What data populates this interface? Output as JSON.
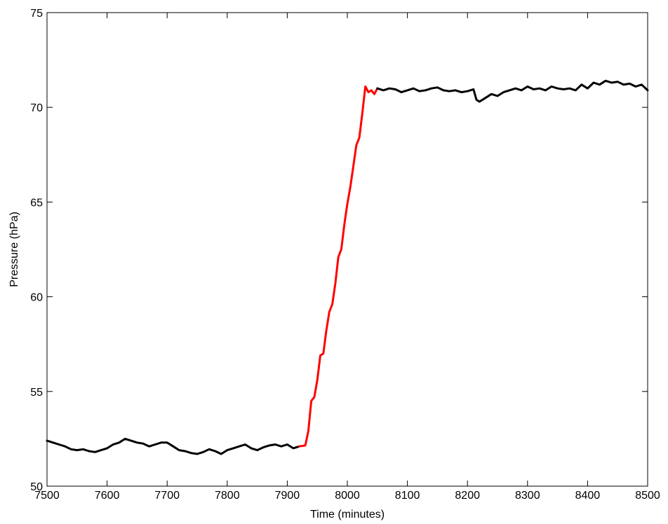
{
  "chart_data": {
    "type": "line",
    "title": "",
    "xlabel": "Time (minutes)",
    "ylabel": "Pressure (hPa)",
    "xlim": [
      7500,
      8500
    ],
    "ylim": [
      50,
      75
    ],
    "xticks": [
      7500,
      7600,
      7700,
      7800,
      7900,
      8000,
      8100,
      8200,
      8300,
      8400,
      8500
    ],
    "yticks": [
      50,
      55,
      60,
      65,
      70,
      75
    ],
    "grid": false,
    "legend": "none",
    "series": [
      {
        "color": "#000000",
        "segment": "before",
        "x": [
          7500,
          7510,
          7520,
          7530,
          7540,
          7550,
          7560,
          7570,
          7580,
          7590,
          7600,
          7610,
          7620,
          7630,
          7640,
          7650,
          7660,
          7670,
          7680,
          7690,
          7700,
          7710,
          7720,
          7730,
          7740,
          7750,
          7760,
          7770,
          7780,
          7790,
          7800,
          7810,
          7820,
          7830,
          7840,
          7850,
          7860,
          7870,
          7880,
          7890,
          7900,
          7910,
          7920
        ],
        "y": [
          52.4,
          52.3,
          52.2,
          52.1,
          51.95,
          51.9,
          51.95,
          51.85,
          51.8,
          51.9,
          52.0,
          52.2,
          52.3,
          52.5,
          52.4,
          52.3,
          52.25,
          52.1,
          52.2,
          52.3,
          52.3,
          52.1,
          51.9,
          51.85,
          51.75,
          51.7,
          51.8,
          51.95,
          51.85,
          51.7,
          51.9,
          52.0,
          52.1,
          52.2,
          52.0,
          51.9,
          52.05,
          52.15,
          52.2,
          52.1,
          52.2,
          52.0,
          52.1
        ]
      },
      {
        "color": "#ff0000",
        "segment": "transition",
        "x": [
          7920,
          7930,
          7935,
          7940,
          7945,
          7950,
          7955,
          7960,
          7965,
          7970,
          7975,
          7980,
          7985,
          7990,
          7995,
          8000,
          8005,
          8010,
          8015,
          8020,
          8025,
          8030,
          8035,
          8040,
          8045,
          8050
        ],
        "y": [
          52.1,
          52.15,
          52.9,
          54.5,
          54.7,
          55.6,
          56.9,
          57.0,
          58.2,
          59.2,
          59.6,
          60.7,
          62.1,
          62.5,
          63.8,
          64.9,
          65.8,
          66.9,
          68.0,
          68.4,
          69.7,
          71.1,
          70.8,
          70.9,
          70.7,
          71.0
        ]
      },
      {
        "color": "#000000",
        "segment": "after",
        "x": [
          8050,
          8060,
          8070,
          8080,
          8090,
          8100,
          8110,
          8120,
          8130,
          8140,
          8150,
          8160,
          8170,
          8180,
          8190,
          8200,
          8210,
          8215,
          8220,
          8230,
          8240,
          8250,
          8260,
          8270,
          8280,
          8290,
          8300,
          8310,
          8320,
          8330,
          8340,
          8350,
          8360,
          8370,
          8380,
          8390,
          8400,
          8410,
          8420,
          8430,
          8440,
          8450,
          8460,
          8470,
          8480,
          8490,
          8500
        ],
        "y": [
          71.0,
          70.9,
          71.0,
          70.95,
          70.8,
          70.9,
          71.0,
          70.85,
          70.9,
          71.0,
          71.05,
          70.9,
          70.85,
          70.9,
          70.8,
          70.85,
          70.95,
          70.4,
          70.3,
          70.5,
          70.7,
          70.6,
          70.8,
          70.9,
          71.0,
          70.9,
          71.1,
          70.95,
          71.0,
          70.9,
          71.1,
          71.0,
          70.95,
          71.0,
          70.9,
          71.2,
          71.0,
          71.3,
          71.2,
          71.4,
          71.3,
          71.35,
          71.2,
          71.25,
          71.1,
          71.2,
          70.9
        ]
      }
    ]
  }
}
